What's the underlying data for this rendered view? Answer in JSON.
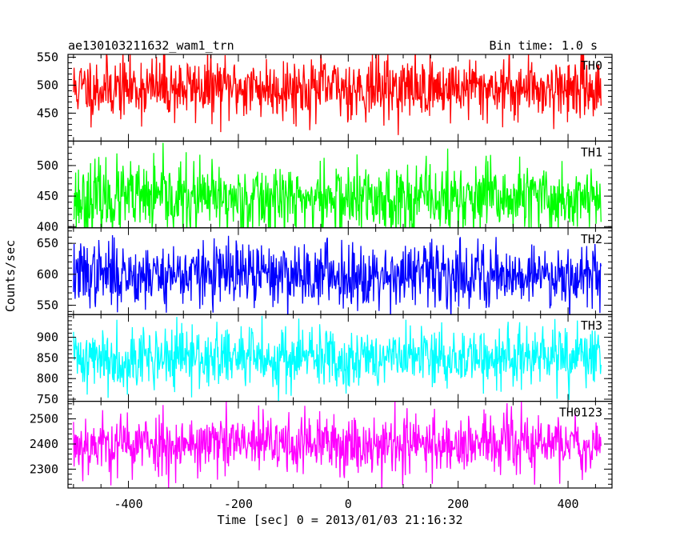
{
  "header": {
    "title": "ae130103211632_wam1_trn",
    "bin_time": "Bin time: 1.0 s"
  },
  "chart_data": {
    "type": "line",
    "title": "ae130103211632_wam1_trn",
    "xlabel": "Time [sec] 0 = 2013/01/03 21:16:32",
    "ylabel": "Counts/sec",
    "xlim": [
      -510,
      480
    ],
    "x_ticks": [
      -400,
      -200,
      0,
      200,
      400
    ],
    "x_range": [
      -500,
      460
    ],
    "bin_time_s": 1.0,
    "grid": false,
    "panels": [
      {
        "name": "TH0",
        "color": "#ff0000",
        "ylim": [
          400,
          555
        ],
        "y_ticks": [
          450,
          500,
          550
        ],
        "mean": 495,
        "spread": 28,
        "seed": 11
      },
      {
        "name": "TH1",
        "color": "#00ff00",
        "ylim": [
          398,
          540
        ],
        "y_ticks": [
          400,
          450,
          500
        ],
        "mean": 445,
        "spread": 30,
        "seed": 23
      },
      {
        "name": "TH2",
        "color": "#0000ff",
        "ylim": [
          535,
          675
        ],
        "y_ticks": [
          550,
          600,
          650
        ],
        "mean": 600,
        "spread": 26,
        "seed": 37
      },
      {
        "name": "TH3",
        "color": "#00ffff",
        "ylim": [
          745,
          955
        ],
        "y_ticks": [
          750,
          800,
          850,
          900
        ],
        "mean": 850,
        "spread": 38,
        "seed": 41
      },
      {
        "name": "TH0123",
        "color": "#ff00ff",
        "ylim": [
          2225,
          2570
        ],
        "y_ticks": [
          2300,
          2400,
          2500
        ],
        "mean": 2400,
        "spread": 62,
        "seed": 53
      }
    ]
  }
}
